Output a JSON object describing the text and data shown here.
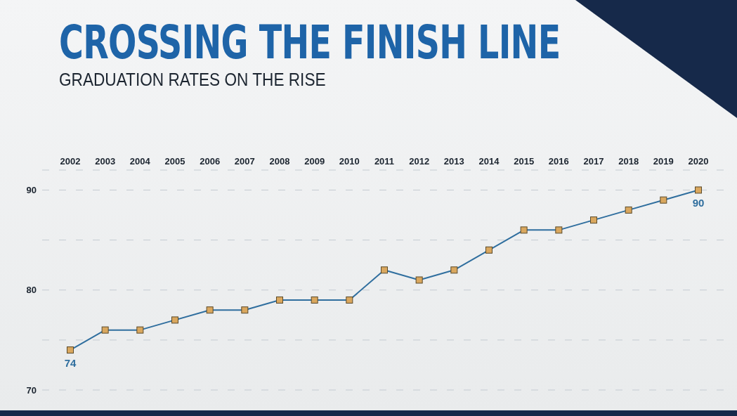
{
  "chart_data": {
    "type": "line",
    "title": "CROSSING THE FINISH LINE",
    "subtitle": "GRADUATION RATES ON THE RISE",
    "categories": [
      "2002",
      "2003",
      "2004",
      "2005",
      "2006",
      "2007",
      "2008",
      "2009",
      "2010",
      "2011",
      "2012",
      "2013",
      "2014",
      "2015",
      "2016",
      "2017",
      "2018",
      "2019",
      "2020"
    ],
    "series": [
      {
        "color": "#2f6e9e",
        "values": [
          74,
          76,
          76,
          77,
          78,
          78,
          79,
          79,
          79,
          82,
          81,
          82,
          84,
          86,
          86,
          87,
          88,
          89,
          90
        ],
        "value_labels": [
          "74",
          null,
          null,
          null,
          null,
          null,
          null,
          null,
          null,
          null,
          null,
          null,
          null,
          null,
          null,
          null,
          null,
          null,
          "90"
        ]
      }
    ],
    "ylim": [
      70,
      92
    ],
    "yticks": [
      70,
      {
        "value": 75,
        "label": null
      },
      80,
      {
        "value": 85,
        "label": null
      },
      90
    ],
    "grid": "y",
    "marker": "square",
    "line_style": "solid"
  }
}
